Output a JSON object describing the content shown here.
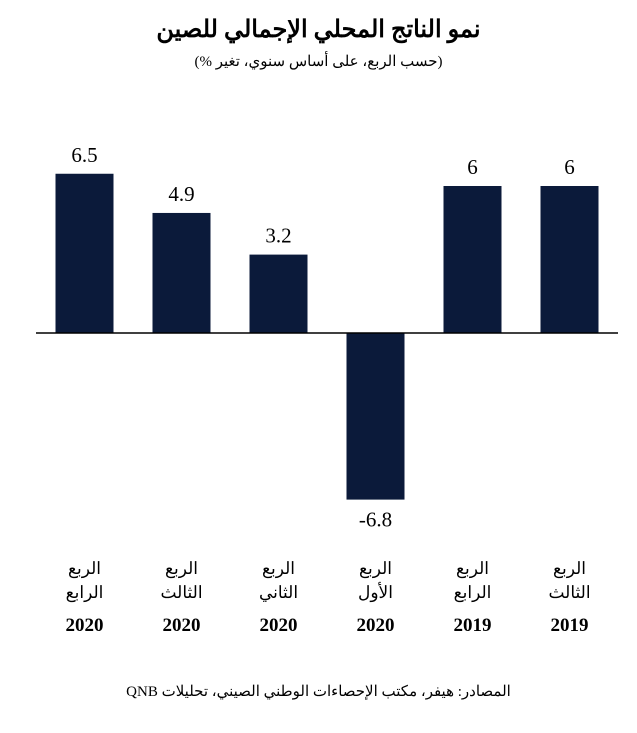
{
  "title": "نمو الناتج المحلي الإجمالي للصين",
  "subtitle": "(حسب الربع، على أساس سنوي، تغير %)",
  "source": "المصادر: هيفر، مكتب الإحصاءات الوطني الصيني، تحليلات QNB",
  "colors": {
    "bar": "#0b1a3a",
    "axis": "#000000"
  },
  "chart_data": {
    "type": "bar",
    "title": "نمو الناتج المحلي الإجمالي للصين",
    "subtitle": "(حسب الربع، على أساس سنوي، تغير %)",
    "categories": [
      {
        "line1": "الربع",
        "line2": "الرابع",
        "year": "2020"
      },
      {
        "line1": "الربع",
        "line2": "الثالث",
        "year": "2020"
      },
      {
        "line1": "الربع",
        "line2": "الثاني",
        "year": "2020"
      },
      {
        "line1": "الربع",
        "line2": "الأول",
        "year": "2020"
      },
      {
        "line1": "الربع",
        "line2": "الرابع",
        "year": "2019"
      },
      {
        "line1": "الربع",
        "line2": "الثالث",
        "year": "2019"
      }
    ],
    "values": [
      6.5,
      4.9,
      3.2,
      -6.8,
      6,
      6
    ],
    "data_labels": [
      "6.5",
      "4.9",
      "3.2",
      "-6.8",
      "6",
      "6"
    ],
    "ylim": [
      -6.8,
      6.5
    ],
    "grid": false,
    "legend": "none"
  }
}
